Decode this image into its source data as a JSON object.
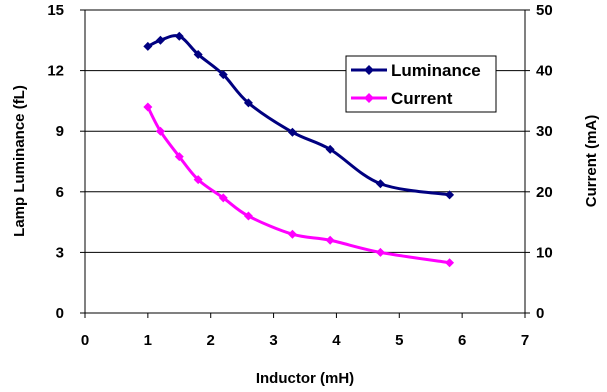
{
  "chart_data": {
    "type": "line",
    "xlabel": "Inductor (mH)",
    "ylabel": "Lamp Luminance (fL)",
    "y2label": "Current (mA)",
    "xlim": [
      0,
      7
    ],
    "ylim": [
      0,
      15
    ],
    "y2lim": [
      0,
      50
    ],
    "x_ticks": [
      "0",
      "1",
      "2",
      "3",
      "4",
      "5",
      "6",
      "7"
    ],
    "y_ticks": [
      "0",
      "3",
      "6",
      "9",
      "12",
      "15"
    ],
    "y2_ticks": [
      "0",
      "10",
      "20",
      "30",
      "40",
      "50"
    ],
    "grid": "horizontal",
    "legend_position": "top-right",
    "series": [
      {
        "name": "Luminance",
        "axis": "left",
        "color": "#000080",
        "marker": "diamond",
        "x": [
          1.0,
          1.2,
          1.5,
          1.8,
          2.2,
          2.6,
          3.3,
          3.9,
          4.7,
          5.8
        ],
        "y": [
          13.2,
          13.5,
          13.7,
          12.8,
          11.8,
          10.4,
          8.95,
          8.1,
          6.4,
          5.85
        ]
      },
      {
        "name": "Current",
        "axis": "right",
        "color": "#FF00FF",
        "marker": "diamond",
        "x": [
          1.0,
          1.2,
          1.5,
          1.8,
          2.2,
          2.6,
          3.3,
          3.9,
          4.7,
          5.8
        ],
        "y": [
          34,
          30,
          25.8,
          22,
          19,
          16,
          13,
          12,
          10,
          8.3
        ]
      }
    ]
  }
}
